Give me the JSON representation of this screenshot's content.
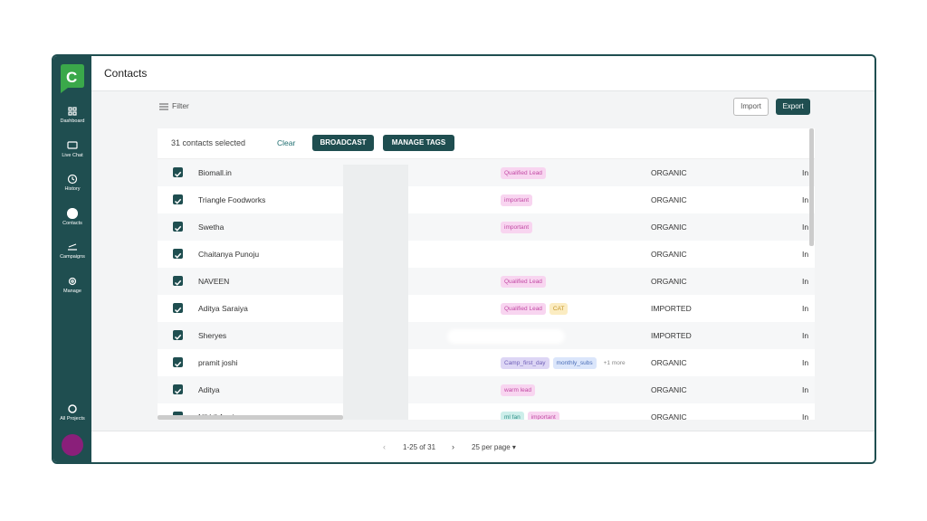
{
  "sidebar": {
    "items": [
      "Dashboard",
      "Live Chat",
      "History",
      "Contacts",
      "Campaigns",
      "Manage"
    ],
    "footer": "All Projects"
  },
  "header": {
    "title": "Contacts"
  },
  "toolbar": {
    "filter": "Filter",
    "import": "Import",
    "export": "Export"
  },
  "selection": {
    "count": "31 contacts selected",
    "clear": "Clear",
    "broadcast": "BROADCAST",
    "manage_tags": "MANAGE TAGS"
  },
  "table": {
    "rows": [
      {
        "name": "Biomall.in",
        "tags": [
          {
            "text": "Qualified Lead",
            "color": "pink"
          }
        ],
        "source": "ORGANIC",
        "last": "In"
      },
      {
        "name": "Triangle Foodworks",
        "tags": [
          {
            "text": "important",
            "color": "pink"
          }
        ],
        "source": "ORGANIC",
        "last": "In"
      },
      {
        "name": "Swetha",
        "tags": [
          {
            "text": "important",
            "color": "pink"
          }
        ],
        "source": "ORGANIC",
        "last": "In"
      },
      {
        "name": "Chaitanya Punoju",
        "tags": [],
        "source": "ORGANIC",
        "last": "In"
      },
      {
        "name": "NAVEEN",
        "tags": [
          {
            "text": "Qualified Lead",
            "color": "pink"
          }
        ],
        "source": "ORGANIC",
        "last": "In"
      },
      {
        "name": "Aditya Saraiya",
        "tags": [
          {
            "text": "Qualified Lead",
            "color": "pink"
          },
          {
            "text": "CAT",
            "color": "yellow"
          }
        ],
        "source": "IMPORTED",
        "last": "In"
      },
      {
        "name": "Sheryes",
        "tags": [],
        "source": "IMPORTED",
        "last": "In"
      },
      {
        "name": "pramit joshi",
        "tags": [
          {
            "text": "Camp_first_day",
            "color": "lavender"
          },
          {
            "text": "monthly_subs",
            "color": "blue"
          },
          {
            "text": "+1 more",
            "color": "none"
          }
        ],
        "source": "ORGANIC",
        "last": "In"
      },
      {
        "name": "Aditya",
        "tags": [
          {
            "text": "warm lead",
            "color": "pink"
          }
        ],
        "source": "ORGANIC",
        "last": "In"
      },
      {
        "name": "Nikhil Aneja",
        "tags": [
          {
            "text": "ml fan",
            "color": "teal"
          },
          {
            "text": "important",
            "color": "pink"
          }
        ],
        "source": "ORGANIC",
        "last": "In"
      }
    ]
  },
  "pagination": {
    "range": "1-25 of 31",
    "per_page": "25 per page"
  }
}
